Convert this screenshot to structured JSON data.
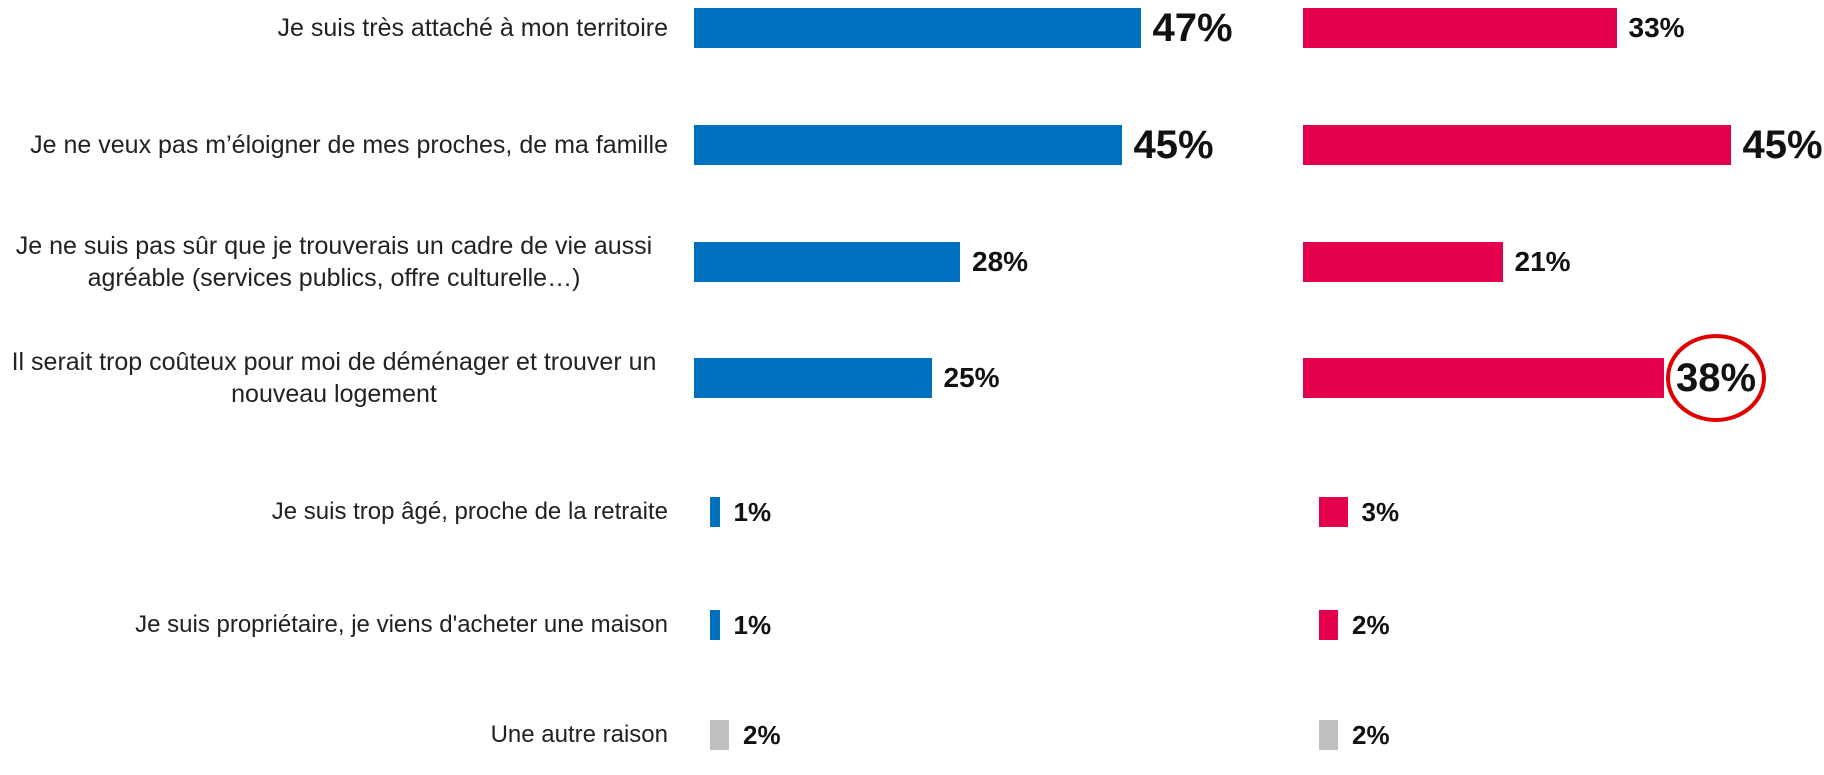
{
  "chart_data": {
    "type": "bar",
    "orientation": "horizontal",
    "categories": [
      "Je suis très attaché à mon territoire",
      "Je ne veux pas m’éloigner de mes proches, de ma famille",
      "Je ne suis pas sûr que je trouverais un cadre de vie aussi agréable (services publics, offre culturelle…)",
      "Il serait trop coûteux pour moi de déménager et trouver un nouveau logement",
      "Je suis trop âgé, proche de la retraite",
      "Je suis propriétaire, je viens d'acheter une maison",
      "Une autre raison"
    ],
    "series": [
      {
        "colors": [
          "#0070c0",
          "#0070c0",
          "#0070c0",
          "#0070c0",
          "#0070c0",
          "#0070c0",
          "#bfbfbf"
        ],
        "values": [
          47,
          45,
          28,
          25,
          1,
          1,
          2
        ],
        "value_labels": [
          "47%",
          "45%",
          "28%",
          "25%",
          "1%",
          "1%",
          "2%"
        ],
        "large_labels": [
          0,
          1
        ]
      },
      {
        "colors": [
          "#e4004a",
          "#e4004a",
          "#e4004a",
          "#e4004a",
          "#e4004a",
          "#e4004a",
          "#bfbfbf"
        ],
        "values": [
          33,
          45,
          21,
          38,
          3,
          2,
          2
        ],
        "value_labels": [
          "33%",
          "45%",
          "21%",
          "38%",
          "3%",
          "2%",
          "2%"
        ],
        "large_labels": [
          1,
          3
        ],
        "circled": [
          3
        ]
      }
    ]
  }
}
